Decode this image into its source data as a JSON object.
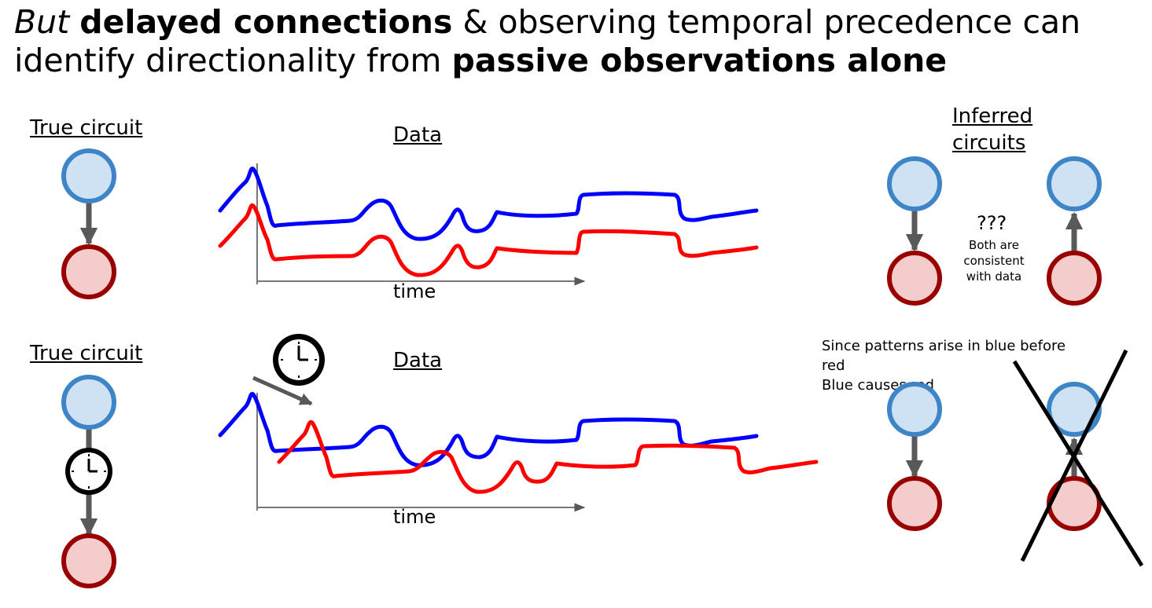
{
  "title": {
    "part1": "But",
    "part2": "delayed connections",
    "part3": " & observing temporal precedence can",
    "part4": "identify directionality from ",
    "part5": "passive observations alone"
  },
  "top": {
    "true_circuit_label": "True circuit",
    "data_label": "Data",
    "time_label": "time",
    "inferred_label_line1": "Inferred",
    "inferred_label_line2": "circuits",
    "question": "???",
    "note": [
      "Both are",
      "consistent",
      "with data"
    ]
  },
  "bottom": {
    "true_circuit_label": "True circuit",
    "data_label": "Data",
    "time_label": "time",
    "explanation": [
      "Since patterns arise in blue before",
      "red",
      "Blue causes red"
    ]
  },
  "colors": {
    "blue_trace": "#0000ff",
    "red_trace": "#ff0000",
    "blue_node_fill": "#cfe2f3",
    "blue_node_stroke": "#3d85c6",
    "red_node_fill": "#f4cccc",
    "red_node_stroke": "#990000",
    "arrow": "#595959"
  },
  "icons": [
    "clock-icon",
    "cross-out-icon"
  ]
}
